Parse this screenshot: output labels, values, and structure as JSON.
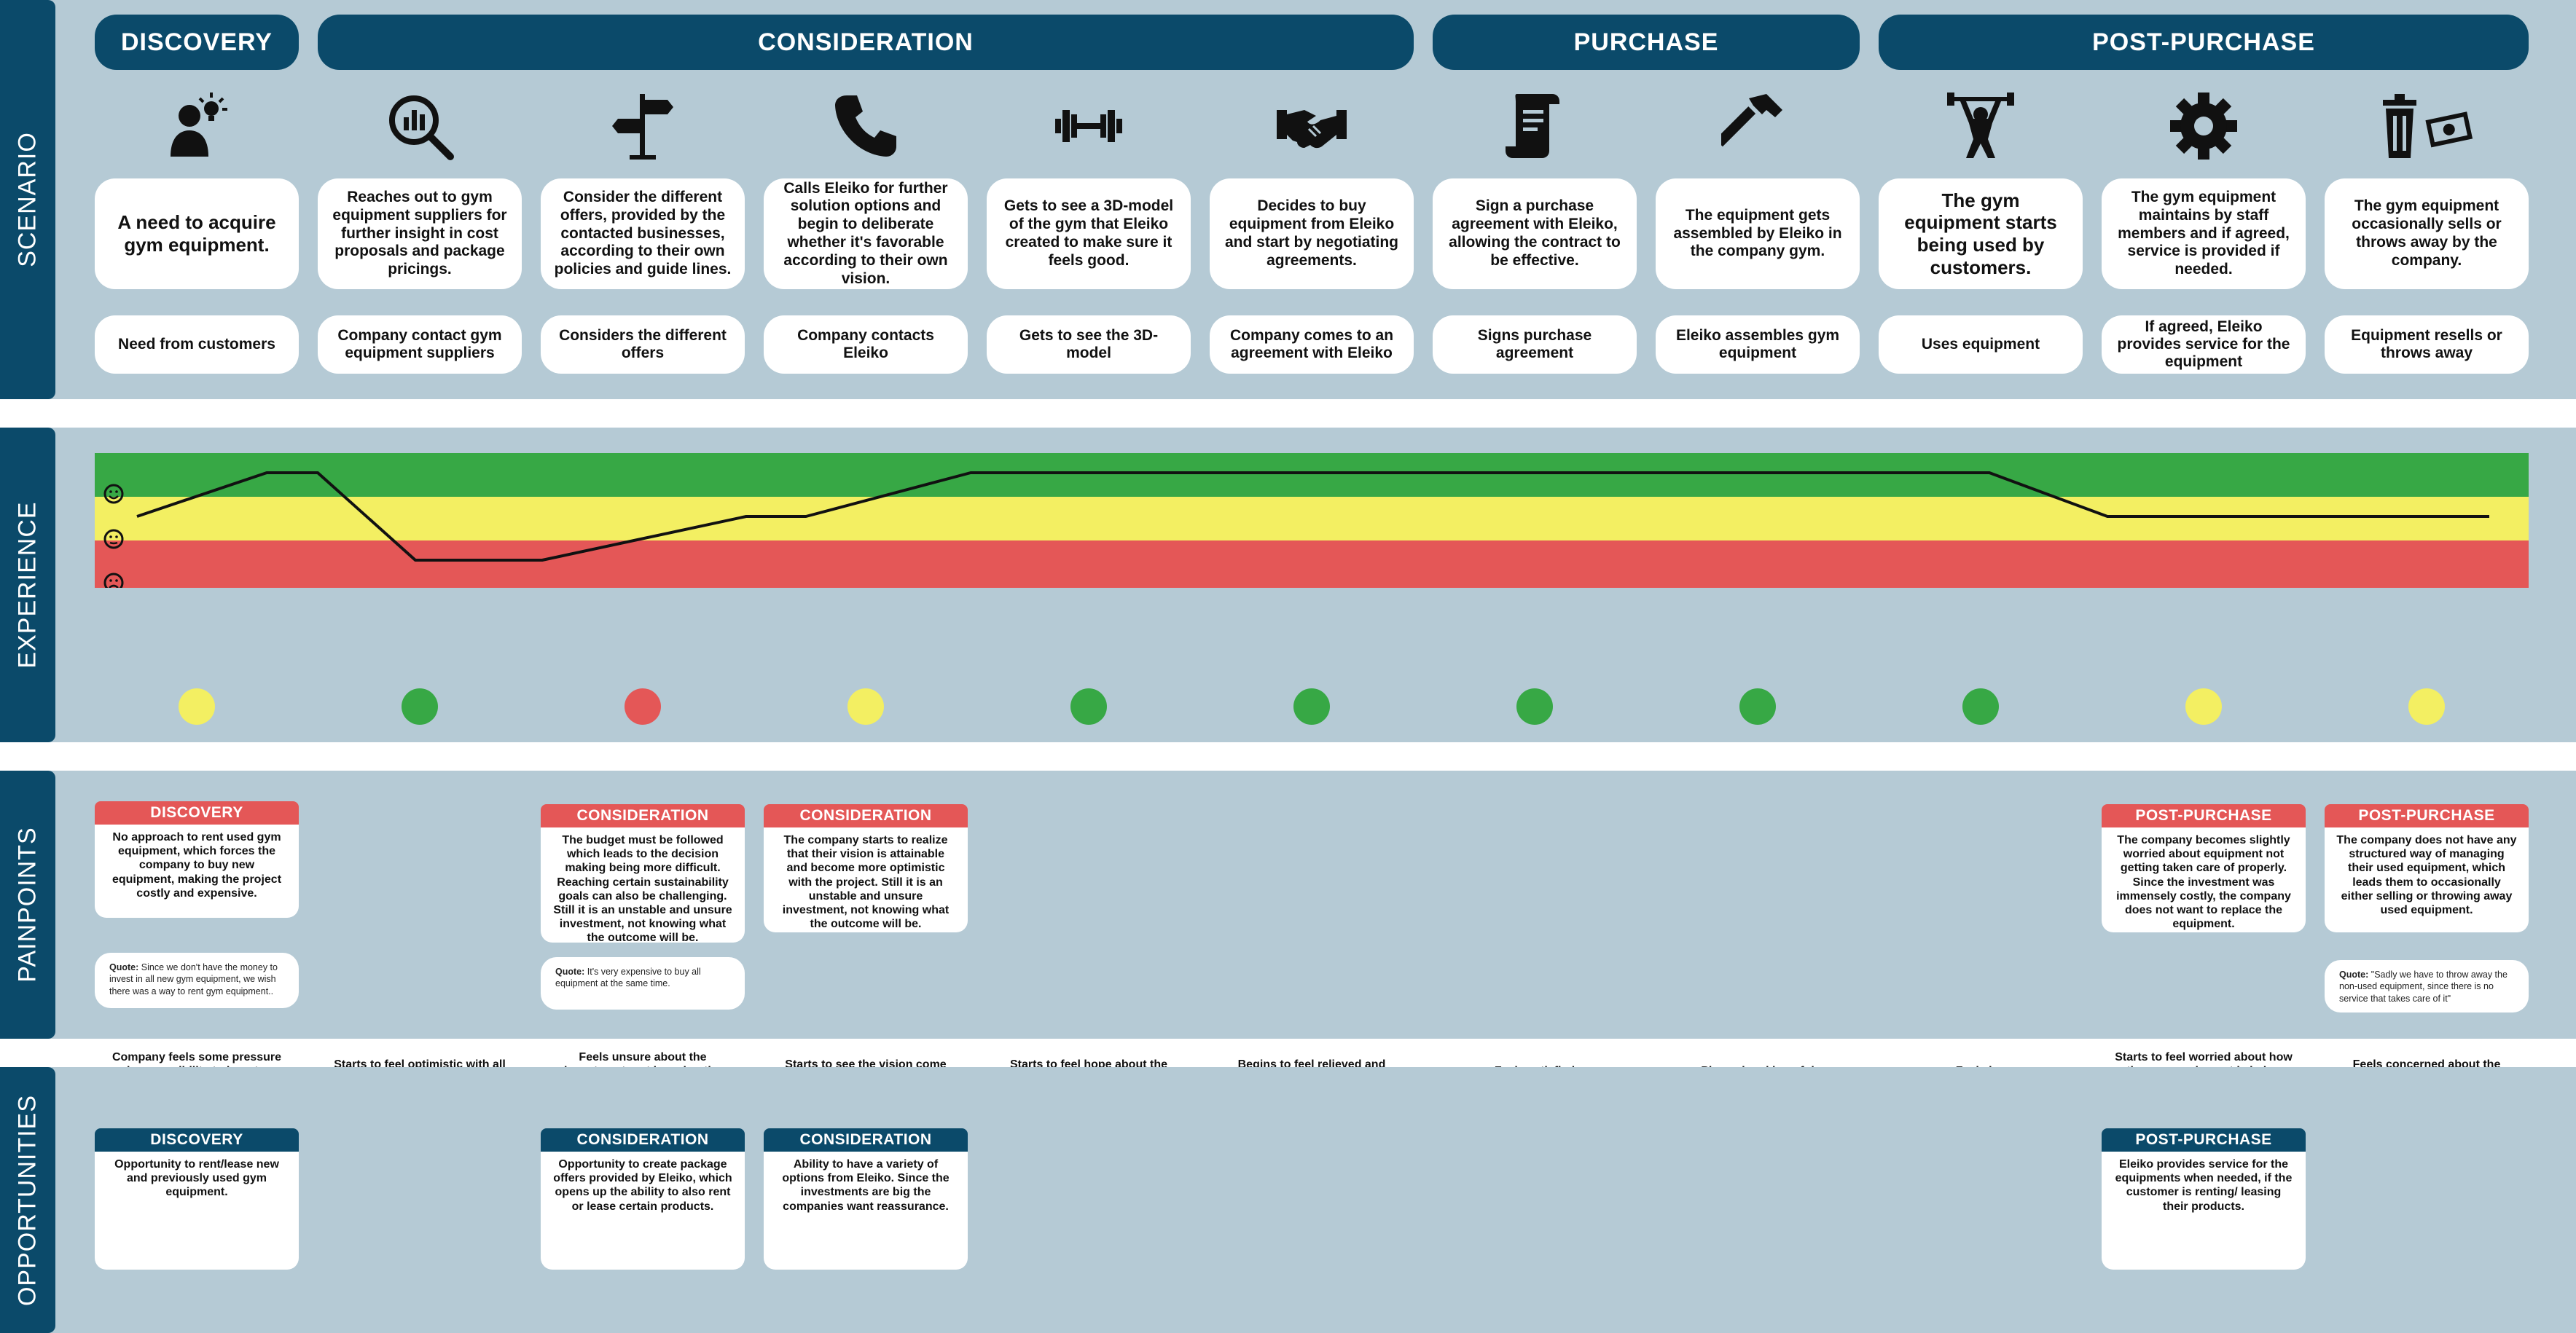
{
  "sections": {
    "scenario": "SCENARIO",
    "experience": "EXPERIENCE",
    "painpoints": "PAINPOINTS",
    "opportunities": "OPPORTUNITIES"
  },
  "stages": {
    "discovery": "DISCOVERY",
    "consideration": "CONSIDERATION",
    "purchase": "PURCHASE",
    "post_purchase": "POST-PURCHASE"
  },
  "steps": [
    {
      "icon": "idea-person-icon",
      "description": "A need to acquire gym equipment.",
      "summary": "Need from customers",
      "emotion": "Company feels some pressure and responsibility to insert new equipment",
      "mood": "neutral"
    },
    {
      "icon": "magnifier-chart-icon",
      "description": "Reaches out to gym equipment suppliers for further insight in cost proposals and package pricings.",
      "summary": "Company contact gym equipment suppliers",
      "emotion": "Starts to feel optimistic with all the offers provided",
      "mood": "happy"
    },
    {
      "icon": "signpost-icon",
      "description": "Consider the different offers, provided by the contacted businesses, according to their own policies and guide lines.",
      "summary": "Considers the different offers",
      "emotion": "Feels unsure about the investment, not knowing the outcome",
      "mood": "sad"
    },
    {
      "icon": "phone-icon",
      "description": "Calls Eleiko for further solution options and begin to deliberate whether it's favorable according to their own vision.",
      "summary": "Company contacts Eleiko",
      "emotion": "Starts to see the vision come together again",
      "mood": "neutral"
    },
    {
      "icon": "dumbbell-icon",
      "description": "Gets to see a 3D-model of the gym that Eleiko created to make sure it feels good.",
      "summary": "Gets to see the 3D-model",
      "emotion": "Starts to feel hope about the gym",
      "mood": "happy"
    },
    {
      "icon": "handshake-icon",
      "description": "Decides to buy equipment from Eleiko and start by negotiating agreements.",
      "summary": "Company comes to an agreement with Eleiko",
      "emotion": "Begins to feel relieved and content",
      "mood": "happy"
    },
    {
      "icon": "contract-scroll-icon",
      "description": "Sign a purchase agreement with Eleiko, allowing the contract to be effective.",
      "summary": "Signs purchase agreement",
      "emotion": "Feels satisfied",
      "mood": "happy"
    },
    {
      "icon": "hammer-icon",
      "description": "The equipment gets assembled by Eleiko in the company gym.",
      "summary": "Eleiko assembles gym equipment",
      "emotion": "Pleased and hopeful",
      "mood": "happy"
    },
    {
      "icon": "weightlifter-icon",
      "description": "The gym equipment starts being used by customers.",
      "summary": "Uses equipment",
      "emotion": "Feels joy",
      "mood": "happy"
    },
    {
      "icon": "gear-icon",
      "description": "The gym equipment maintains by staff members and if agreed, service is provided if needed.",
      "summary": "If agreed, Eleiko provides service for the equipment",
      "emotion": "Starts to feel worried about how the gym equipment is being used",
      "mood": "neutral"
    },
    {
      "icon": "trash-money-icon",
      "description": "The gym equipment occasionally sells or throws away by the company.",
      "summary": "Equipment resells or throws away",
      "emotion": "Feels concerned about the equipment",
      "mood": "neutral"
    }
  ],
  "painpoints": [
    {
      "stage": "DISCOVERY",
      "text": "No approach to rent used gym equipment, which forces the company to buy new equipment, making the project costly and expensive.",
      "quote_label": "Quote:",
      "quote": " Since we don't have the money to invest in all new gym equipment, we wish there was a way to rent gym equipment.."
    },
    {
      "stage": "CONSIDERATION",
      "text": "The budget must be followed which leads to the decision making being more difficult. Reaching certain sustainability goals can also be  challenging. Still it is an unstable and unsure investment, not knowing what the outcome will be.",
      "quote_label": "Quote:",
      "quote": " It's very expensive to buy all equipment at the same time."
    },
    {
      "stage": "CONSIDERATION",
      "text": "The company starts to realize that their vision is attainable and become more optimistic with the project. Still it is an unstable and unsure investment, not knowing what the outcome will be."
    },
    {
      "stage": "POST-PURCHASE",
      "text": "The company becomes slightly worried about equipment not getting taken care of properly. Since the investment was immensely costly, the company does not want to replace the equipment."
    },
    {
      "stage": "POST-PURCHASE",
      "text": "The company does not have any structured way of managing their used equipment, which leads them to occasionally either selling or throwing away used equipment.",
      "quote_label": "Quote:",
      "quote": " \"Sadly we have to throw away the non-used equipment, since there is no service that  takes care of it\""
    }
  ],
  "opportunities": [
    {
      "stage": "DISCOVERY",
      "text": "Opportunity to rent/lease new and previously used gym equipment."
    },
    {
      "stage": "CONSIDERATION",
      "text": "Opportunity to create package offers provided by Eleiko, which opens up the ability to also rent or lease certain products."
    },
    {
      "stage": "CONSIDERATION",
      "text": "Ability to have a variety of options from Eleiko. Since the investments are big the companies want reassurance."
    },
    {
      "stage": "POST-PURCHASE",
      "text": "Eleiko provides service for the equipments when needed, if the customer is renting/ leasing their products."
    }
  ],
  "experience_curve": [
    "neutral",
    "happy",
    "happy",
    "sad",
    "sad",
    "neutral",
    "neutral",
    "happy",
    "happy",
    "happy",
    "happy",
    "happy",
    "happy",
    "happy",
    "happy",
    "neutral",
    "neutral",
    "neutral"
  ],
  "experience_zones": {
    "happy": "#37a845",
    "neutral": "#f3ef62",
    "sad": "#e45757"
  },
  "mood_colors": {
    "happy": "#37a845",
    "neutral": "#f3ef62",
    "sad": "#e45757"
  },
  "colors": {
    "navy": "#0b4a6a",
    "band": "#b5cad5",
    "red": "#e45757"
  }
}
